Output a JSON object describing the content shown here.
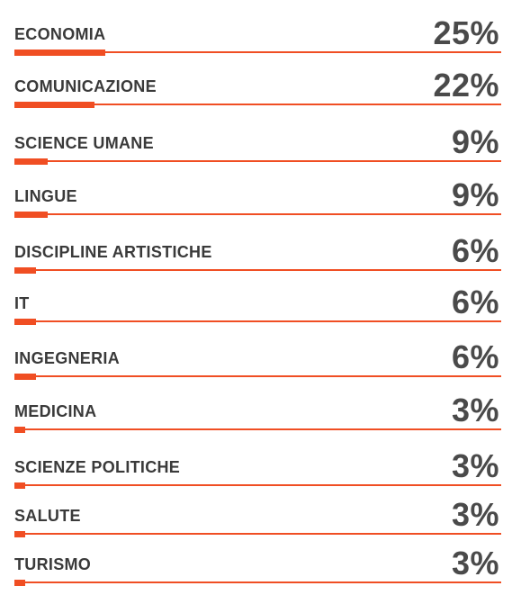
{
  "chart_data": {
    "type": "bar",
    "orientation": "horizontal",
    "categories": [
      "ECONOMIA",
      "COMUNICAZIONE",
      "SCIENCE UMANE",
      "LINGUE",
      "DISCIPLINE ARTISTICHE",
      "IT",
      "INGEGNERIA",
      "MEDICINA",
      "SCIENZE POLITICHE",
      "SALUTE",
      "TURISMO"
    ],
    "values": [
      25,
      22,
      9,
      9,
      6,
      6,
      6,
      3,
      3,
      3,
      3
    ],
    "value_labels": [
      "25%",
      "22%",
      "9%",
      "9%",
      "6%",
      "6%",
      "6%",
      "3%",
      "3%",
      "3%",
      "3%"
    ],
    "unit": "%",
    "xlim": [
      0,
      100
    ],
    "bar_color": "#f04e23",
    "text_color": "#3a3a3a",
    "grid": false,
    "legend": "none"
  }
}
